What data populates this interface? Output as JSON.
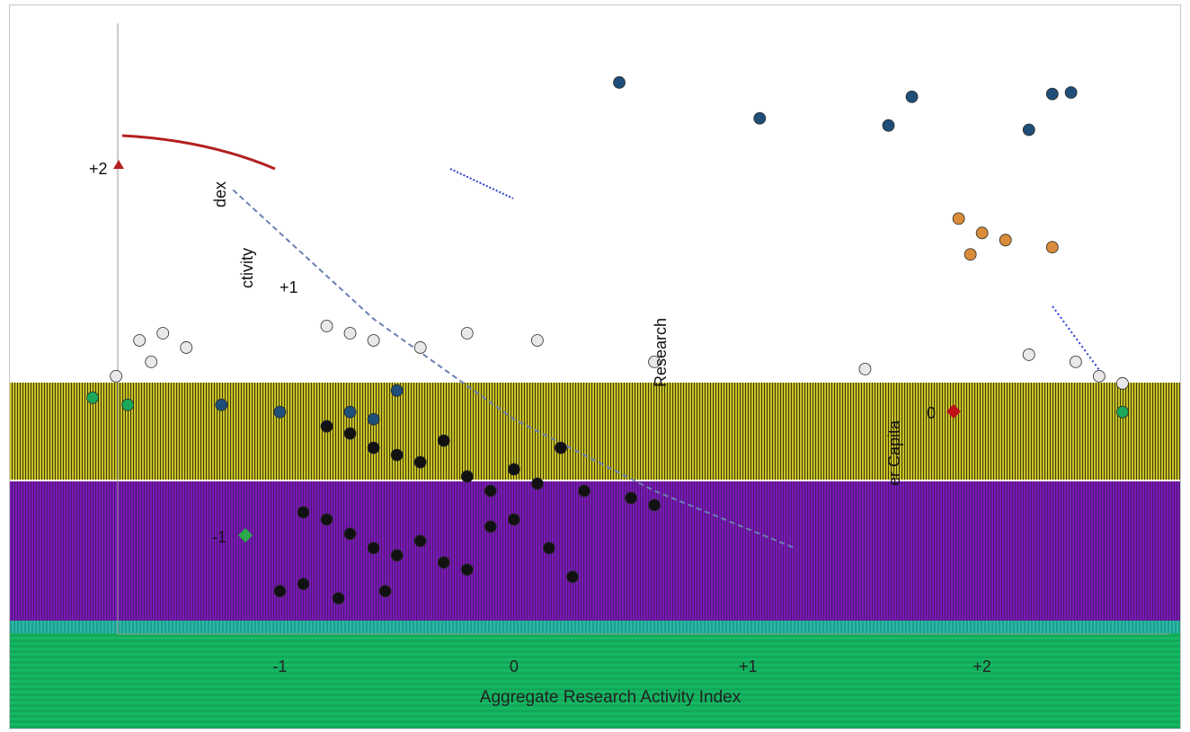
{
  "chart_data": [
    {
      "type": "scatter",
      "xlabel": "Aggregate Research Activity Index",
      "ylabel": "Research",
      "x_ticks": [
        "-1",
        "0",
        "+1",
        "+2"
      ],
      "xlim": [
        -2.0,
        2.8
      ],
      "ylim": [
        -1.6,
        2.6
      ],
      "series": [
        {
          "marker_color": "#1f4e79",
          "points": [
            {
              "x": 0.45,
              "y": 2.25
            },
            {
              "x": 1.05,
              "y": 2.0
            },
            {
              "x": 1.7,
              "y": 2.15
            },
            {
              "x": 2.3,
              "y": 2.17
            },
            {
              "x": 2.38,
              "y": 2.18
            },
            {
              "x": 1.6,
              "y": 1.95
            },
            {
              "x": 2.2,
              "y": 1.92
            },
            {
              "x": -1.25,
              "y": 0.0
            },
            {
              "x": -1.0,
              "y": -0.05
            },
            {
              "x": -0.7,
              "y": -0.05
            },
            {
              "x": -0.6,
              "y": -0.1
            },
            {
              "x": -0.5,
              "y": 0.1
            }
          ]
        },
        {
          "marker_color": "#111111",
          "points": [
            {
              "x": -0.8,
              "y": -0.15
            },
            {
              "x": -0.7,
              "y": -0.2
            },
            {
              "x": -0.6,
              "y": -0.3
            },
            {
              "x": -0.5,
              "y": -0.35
            },
            {
              "x": -0.4,
              "y": -0.4
            },
            {
              "x": -0.3,
              "y": -0.25
            },
            {
              "x": -0.2,
              "y": -0.5
            },
            {
              "x": -0.1,
              "y": -0.6
            },
            {
              "x": 0.0,
              "y": -0.45
            },
            {
              "x": 0.1,
              "y": -0.55
            },
            {
              "x": 0.2,
              "y": -0.3
            },
            {
              "x": 0.3,
              "y": -0.6
            },
            {
              "x": 0.5,
              "y": -0.65
            },
            {
              "x": 0.6,
              "y": -0.7
            },
            {
              "x": -0.9,
              "y": -0.75
            },
            {
              "x": -0.8,
              "y": -0.8
            },
            {
              "x": -0.7,
              "y": -0.9
            },
            {
              "x": -0.6,
              "y": -1.0
            },
            {
              "x": -0.5,
              "y": -1.05
            },
            {
              "x": -0.4,
              "y": -0.95
            },
            {
              "x": -0.3,
              "y": -1.1
            },
            {
              "x": -0.2,
              "y": -1.15
            },
            {
              "x": -0.1,
              "y": -0.85
            },
            {
              "x": 0.0,
              "y": -0.8
            },
            {
              "x": 0.15,
              "y": -1.0
            },
            {
              "x": 0.25,
              "y": -1.2
            },
            {
              "x": -1.0,
              "y": -1.3
            },
            {
              "x": -0.9,
              "y": -1.25
            },
            {
              "x": -0.75,
              "y": -1.35
            },
            {
              "x": -0.55,
              "y": -1.3
            }
          ]
        },
        {
          "marker_color": "#e8e8e8",
          "points": [
            {
              "x": -1.6,
              "y": 0.45
            },
            {
              "x": -1.5,
              "y": 0.5
            },
            {
              "x": -1.4,
              "y": 0.4
            },
            {
              "x": -1.55,
              "y": 0.3
            },
            {
              "x": -1.7,
              "y": 0.2
            },
            {
              "x": -0.8,
              "y": 0.55
            },
            {
              "x": -0.7,
              "y": 0.5
            },
            {
              "x": -0.6,
              "y": 0.45
            },
            {
              "x": -0.4,
              "y": 0.4
            },
            {
              "x": -0.2,
              "y": 0.5
            },
            {
              "x": 0.1,
              "y": 0.45
            },
            {
              "x": 0.6,
              "y": 0.3
            },
            {
              "x": 1.5,
              "y": 0.25
            },
            {
              "x": 2.2,
              "y": 0.35
            },
            {
              "x": 2.4,
              "y": 0.3
            },
            {
              "x": 2.5,
              "y": 0.2
            },
            {
              "x": 2.6,
              "y": 0.15
            }
          ]
        },
        {
          "marker_color": "#d98c3a",
          "points": [
            {
              "x": 1.9,
              "y": 1.3
            },
            {
              "x": 2.0,
              "y": 1.2
            },
            {
              "x": 1.95,
              "y": 1.05
            },
            {
              "x": 2.1,
              "y": 1.15
            },
            {
              "x": 2.3,
              "y": 1.1
            }
          ]
        },
        {
          "marker_color": "#1aa85a",
          "points": [
            {
              "x": -1.8,
              "y": 0.05
            },
            {
              "x": -1.65,
              "y": 0.0
            },
            {
              "x": 2.6,
              "y": -0.05
            }
          ]
        }
      ],
      "trend": {
        "color": "#6b7fb3",
        "points": [
          {
            "x": -1.2,
            "y": 1.5
          },
          {
            "x": -0.6,
            "y": 0.6
          },
          {
            "x": 0.0,
            "y": -0.1
          },
          {
            "x": 0.6,
            "y": -0.6
          },
          {
            "x": 1.2,
            "y": -1.0
          }
        ]
      }
    }
  ],
  "fragments": {
    "y_labels": [
      "+2",
      "+1",
      "0",
      "-1"
    ],
    "rotated_labels": [
      "ctivity",
      "dex",
      "Research",
      "er Capita"
    ]
  },
  "colors": {
    "curve_red": "#b32020",
    "dot_blue": "#1f4e79",
    "diamond_green": "#2aa84a",
    "diamond_red": "#c0101a",
    "dotted_blue": "#2a3ed0"
  }
}
